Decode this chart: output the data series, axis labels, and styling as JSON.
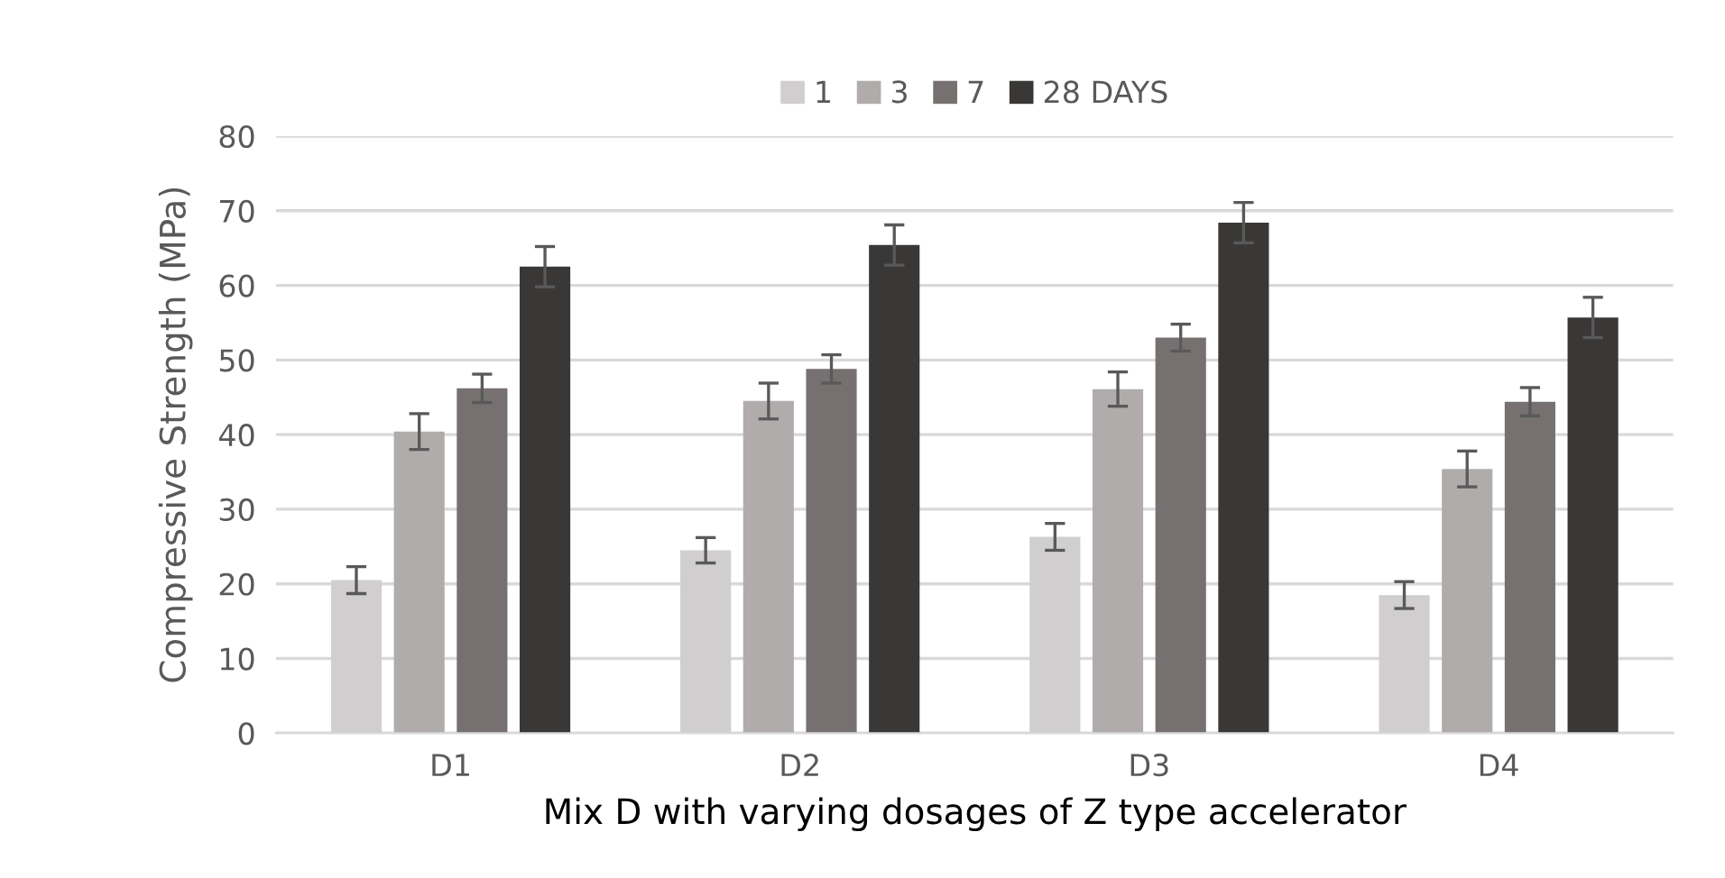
{
  "chart_data": {
    "type": "bar",
    "xlabel": "Mix D with varying dosages of Z type accelerator",
    "ylabel": "Compressive Strength (MPa)",
    "categories": [
      "D1",
      "D2",
      "D3",
      "D4"
    ],
    "series": [
      {
        "name": "1",
        "color": "#d0cecf",
        "values": [
          20.5,
          24.5,
          26.3,
          18.5
        ],
        "errors": [
          1.8,
          1.7,
          1.8,
          1.8
        ]
      },
      {
        "name": "3",
        "color": "#b0acab",
        "values": [
          40.4,
          44.5,
          46.1,
          35.4
        ],
        "errors": [
          2.4,
          2.4,
          2.3,
          2.4
        ]
      },
      {
        "name": "7",
        "color": "#767170",
        "values": [
          46.2,
          48.8,
          53.0,
          44.4
        ],
        "errors": [
          1.9,
          1.9,
          1.8,
          1.9
        ]
      },
      {
        "name": "28 DAYS",
        "color": "#3a3837",
        "values": [
          62.5,
          65.4,
          68.4,
          55.7
        ],
        "errors": [
          2.7,
          2.7,
          2.7,
          2.7
        ]
      }
    ],
    "ylim": [
      0,
      80
    ],
    "yticks": [
      0,
      10,
      20,
      30,
      40,
      50,
      60,
      70,
      80
    ],
    "grid": "y",
    "legend": "top"
  }
}
